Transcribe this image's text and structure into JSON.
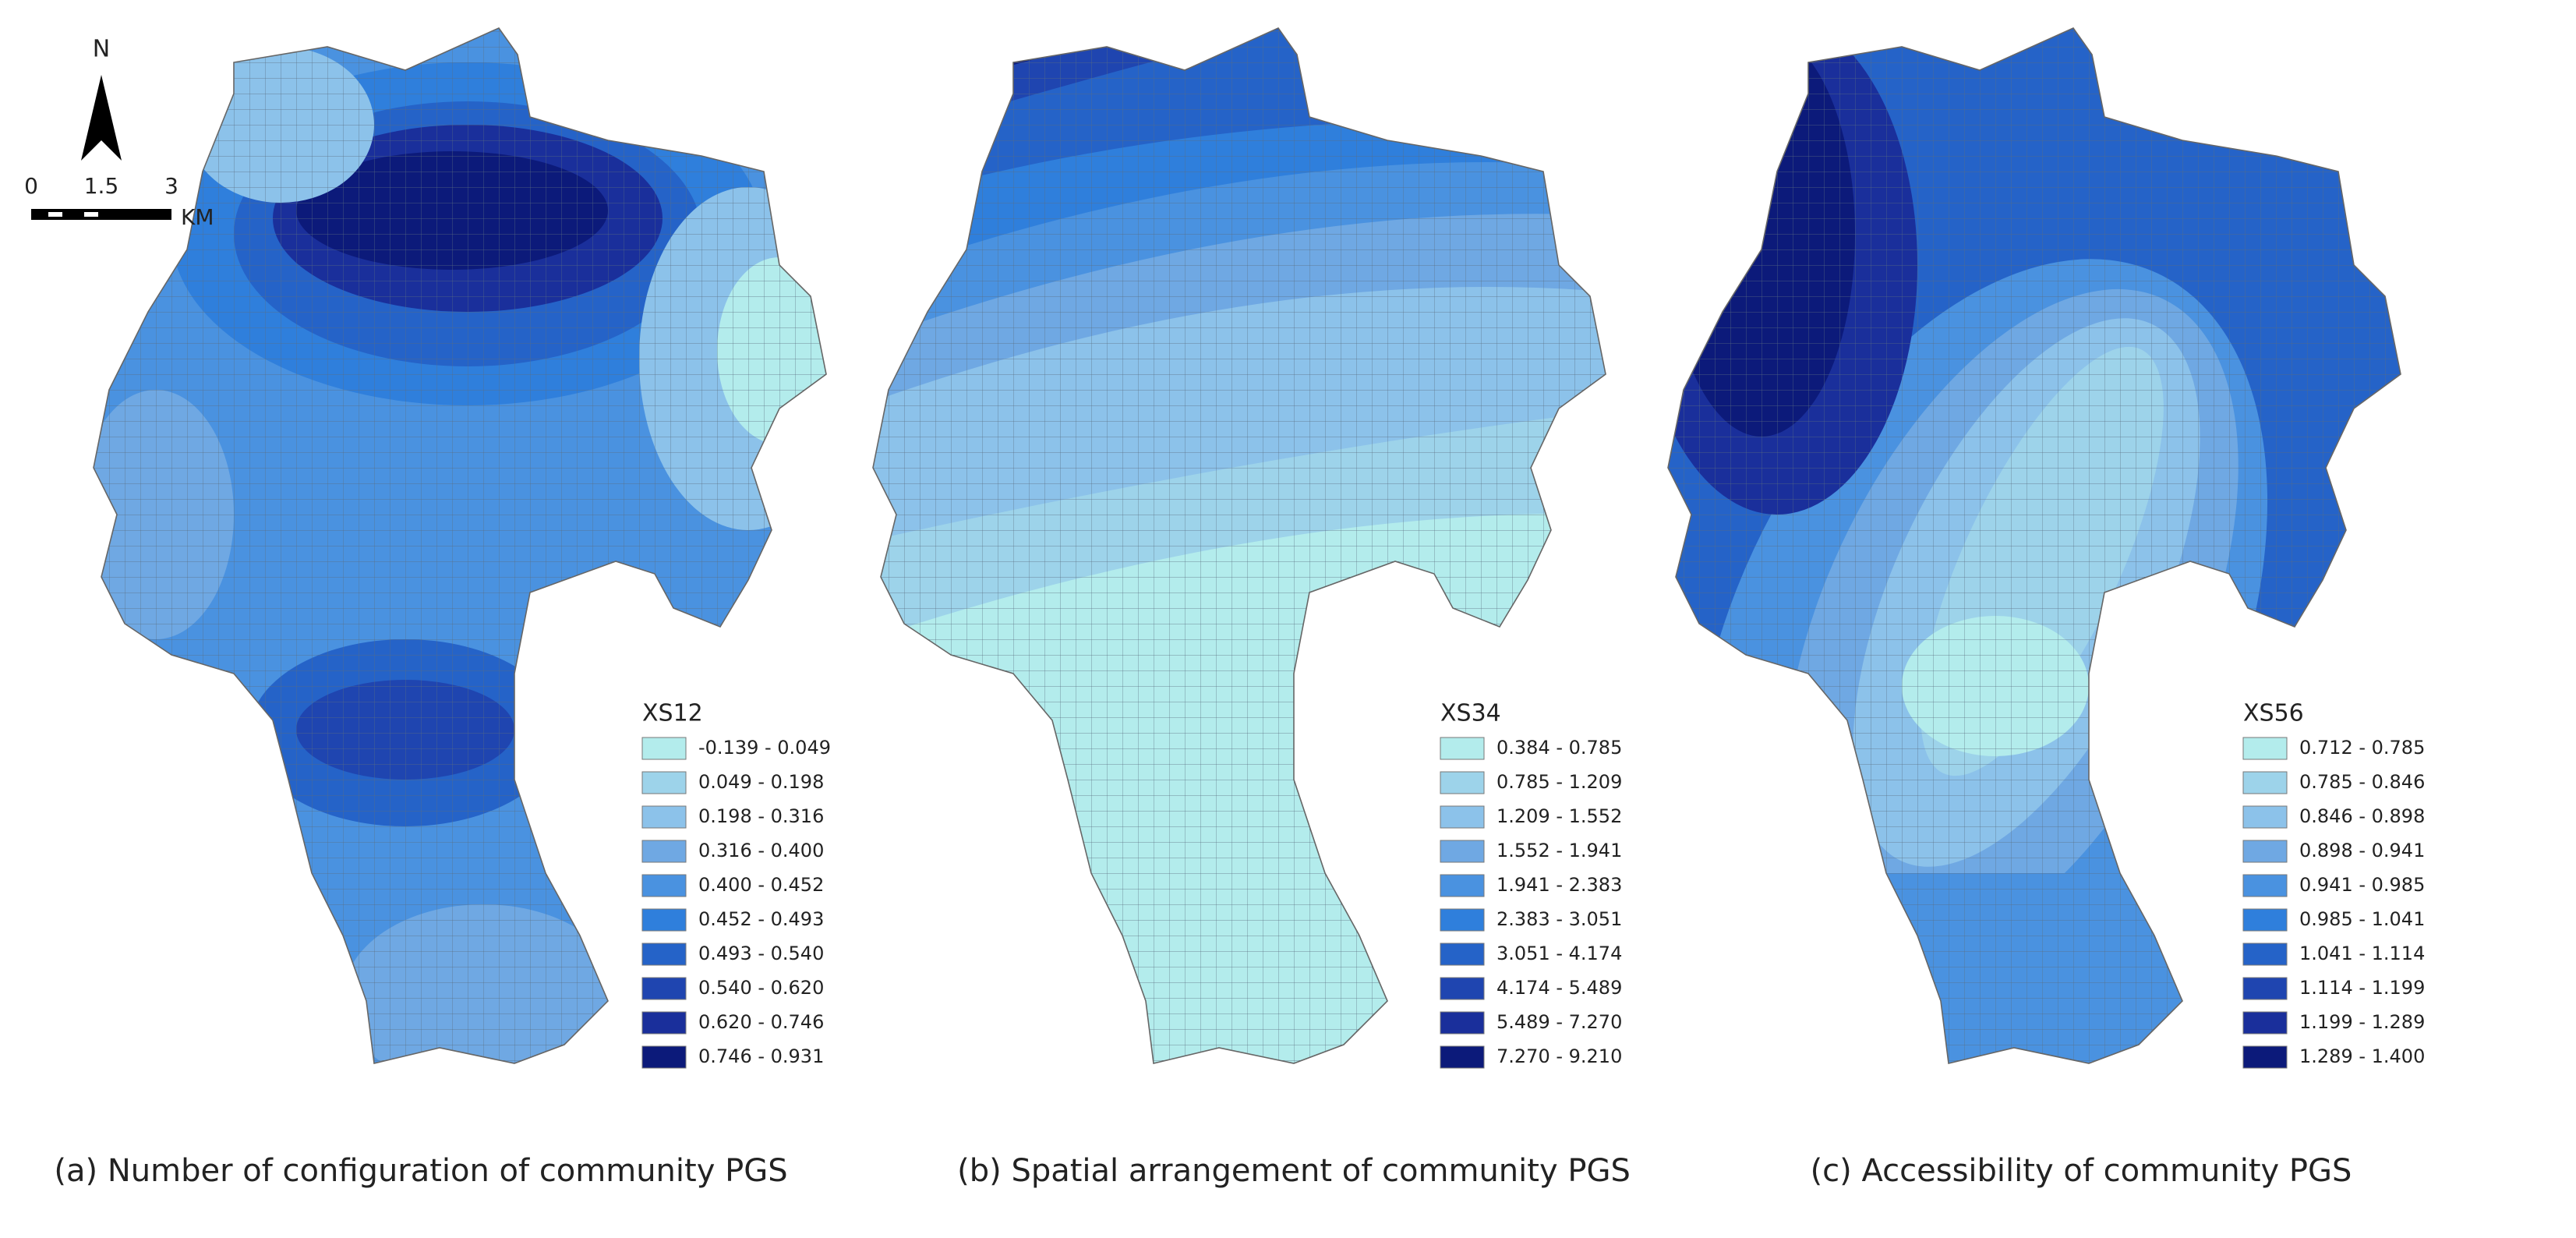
{
  "north_arrow": {
    "label": "N"
  },
  "scale_bar": {
    "labels": [
      "0",
      "1.5",
      "3"
    ],
    "unit": "KM"
  },
  "legend_colors": [
    "#b3ecec",
    "#9dd3ea",
    "#8cc2ea",
    "#6fa8e3",
    "#4a92e0",
    "#2f7fdc",
    "#2563c8",
    "#1f45b0",
    "#1a2f9b",
    "#0c1a7a"
  ],
  "panels": [
    {
      "caption": "(a) Number of configuration of community PGS",
      "legend_title": "XS12",
      "legend_items": [
        "-0.139 - 0.049",
        "0.049 - 0.198",
        "0.198 - 0.316",
        "0.316 - 0.400",
        "0.400 - 0.452",
        "0.452 - 0.493",
        "0.493 - 0.540",
        "0.540 - 0.620",
        "0.620 - 0.746",
        "0.746 - 0.931"
      ]
    },
    {
      "caption": "(b) Spatial arrangement of community PGS",
      "legend_title": "XS34",
      "legend_items": [
        "0.384 - 0.785",
        "0.785 - 1.209",
        "1.209 - 1.552",
        "1.552 - 1.941",
        "1.941 - 2.383",
        "2.383 - 3.051",
        "3.051 - 4.174",
        "4.174 - 5.489",
        "5.489 - 7.270",
        "7.270 - 9.210"
      ]
    },
    {
      "caption": "(c) Accessibility of community PGS",
      "legend_title": "XS56",
      "legend_items": [
        "0.712 - 0.785",
        "0.785 - 0.846",
        "0.846 - 0.898",
        "0.898 - 0.941",
        "0.941 - 0.985",
        "0.985 - 1.041",
        "1.041 - 1.114",
        "1.114 - 1.199",
        "1.199 - 1.289",
        "1.289 - 1.400"
      ]
    }
  ]
}
